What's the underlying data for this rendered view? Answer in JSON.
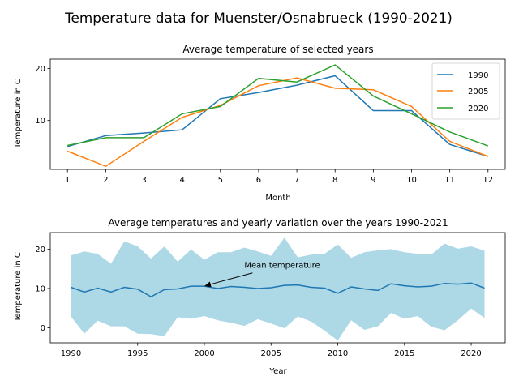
{
  "figure_title": "Temperature data for Muenster/Osnabrueck (1990-2021)",
  "chart_data": [
    {
      "type": "line",
      "title": "Average temperature of selected years",
      "xlabel": "Month",
      "ylabel": "Temperature in C",
      "x": [
        1,
        2,
        3,
        4,
        5,
        6,
        7,
        8,
        9,
        10,
        11,
        12
      ],
      "xlim": [
        0.55,
        12.45
      ],
      "ylim": [
        0.6,
        21.8
      ],
      "xticks": [
        1,
        2,
        3,
        4,
        5,
        6,
        7,
        8,
        9,
        10,
        11,
        12
      ],
      "yticks": [
        10,
        20
      ],
      "legend_position": "upper right",
      "series": [
        {
          "name": "1990",
          "color": "#1f77b4",
          "values": [
            5.0,
            7.1,
            7.6,
            8.2,
            14.2,
            15.4,
            16.8,
            18.6,
            11.9,
            11.9,
            5.4,
            3.1
          ]
        },
        {
          "name": "2005",
          "color": "#ff7f0e",
          "values": [
            4.1,
            1.2,
            6.0,
            10.6,
            12.9,
            16.7,
            18.2,
            16.2,
            15.9,
            12.7,
            6.0,
            3.1
          ]
        },
        {
          "name": "2020",
          "color": "#2ca02c",
          "values": [
            5.2,
            6.7,
            6.7,
            11.3,
            12.7,
            18.1,
            17.4,
            20.7,
            14.7,
            11.3,
            7.8,
            5.1
          ]
        }
      ]
    },
    {
      "type": "area",
      "title": "Average temperatures and yearly variation over the years 1990-2021",
      "xlabel": "Year",
      "ylabel": "Temperature in C",
      "x": [
        1990,
        1991,
        1992,
        1993,
        1994,
        1995,
        1996,
        1997,
        1998,
        1999,
        2000,
        2001,
        2002,
        2003,
        2004,
        2005,
        2006,
        2007,
        2008,
        2009,
        2010,
        2011,
        2012,
        2013,
        2014,
        2015,
        2016,
        2017,
        2018,
        2019,
        2020,
        2021
      ],
      "xlim": [
        1988.45,
        2022.55
      ],
      "ylim": [
        -3.8,
        24.2
      ],
      "xticks": [
        1990,
        1995,
        2000,
        2005,
        2010,
        2015,
        2020
      ],
      "yticks": [
        0,
        10,
        20
      ],
      "band_color": "#add8e6",
      "line_color": "#1f77b4",
      "upper": [
        18.4,
        19.4,
        18.8,
        16.3,
        22.0,
        20.7,
        17.6,
        20.7,
        16.8,
        19.9,
        17.3,
        19.2,
        19.2,
        20.4,
        19.4,
        18.3,
        22.9,
        17.9,
        18.6,
        18.8,
        21.2,
        17.8,
        19.2,
        19.7,
        20.0,
        19.2,
        18.8,
        18.6,
        21.4,
        20.1,
        20.7,
        19.6
      ],
      "mean": [
        10.3,
        9.1,
        10.1,
        9.1,
        10.3,
        9.8,
        7.9,
        9.7,
        9.9,
        10.6,
        10.6,
        10.0,
        10.5,
        10.3,
        10.0,
        10.2,
        10.8,
        10.9,
        10.3,
        10.1,
        8.8,
        10.4,
        9.9,
        9.5,
        11.2,
        10.7,
        10.4,
        10.6,
        11.3,
        11.1,
        11.4,
        10.1
      ],
      "lower": [
        2.9,
        -1.5,
        1.8,
        0.4,
        0.4,
        -1.5,
        -1.6,
        -2.1,
        2.7,
        2.3,
        3.0,
        1.9,
        1.3,
        0.5,
        2.2,
        1.1,
        -0.1,
        2.9,
        1.6,
        -0.7,
        -3.2,
        1.9,
        -0.5,
        0.4,
        3.8,
        2.3,
        3.0,
        0.3,
        -0.6,
        1.9,
        4.9,
        2.5
      ],
      "annotation": {
        "text": "Mean temperature",
        "target_x": 2000,
        "target_y": 10.6,
        "text_x": 2003,
        "text_y": 15.2
      }
    }
  ]
}
